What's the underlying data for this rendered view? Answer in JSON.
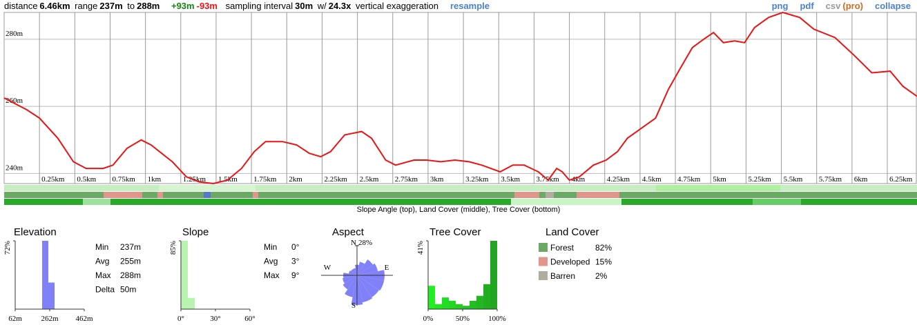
{
  "toolbar": {
    "left": [
      "distance",
      "6.46km",
      "range",
      "237m",
      "to",
      "288m",
      "+93m",
      "-93m",
      "sampling interval",
      "30m",
      "w/",
      "24.3x",
      "vertical exaggeration",
      "resample"
    ],
    "right": [
      "png",
      "pdf",
      "csv",
      "(pro)",
      "collapse"
    ]
  },
  "chart_data": [
    {
      "type": "line",
      "color": "#ee1111",
      "grid": true,
      "caption": "Slope Angle (top), Land Cover (middle), Tree Cover (bottom)",
      "x": [
        0,
        0.16,
        0.25,
        0.38,
        0.49,
        0.58,
        0.7,
        0.77,
        0.87,
        0.97,
        1.04,
        1.19,
        1.29,
        1.38,
        1.48,
        1.58,
        1.68,
        1.77,
        1.85,
        1.97,
        2.07,
        2.16,
        2.24,
        2.31,
        2.41,
        2.53,
        2.6,
        2.7,
        2.77,
        2.9,
        2.99,
        3.09,
        3.19,
        3.29,
        3.38,
        3.51,
        3.6,
        3.68,
        3.78,
        3.85,
        3.91,
        3.95,
        4.0,
        4.07,
        4.17,
        4.26,
        4.34,
        4.41,
        4.51,
        4.61,
        4.7,
        4.78,
        4.87,
        4.95,
        5.02,
        5.09,
        5.17,
        5.24,
        5.31,
        5.41,
        5.51,
        5.63,
        5.73,
        5.88,
        6.02,
        6.14,
        6.27,
        6.36,
        6.46
      ],
      "values": [
        262.5,
        259,
        256.5,
        250.5,
        243.5,
        241.5,
        241.5,
        242.5,
        247.5,
        250,
        248.5,
        243.5,
        239,
        237.5,
        237,
        238,
        241.5,
        246.5,
        249.5,
        249.5,
        248.5,
        246,
        245,
        246.5,
        251.5,
        252.5,
        250.5,
        244,
        242.5,
        244,
        244,
        243.5,
        244,
        243.5,
        242.5,
        240.5,
        242.5,
        242.5,
        240.5,
        238,
        241.5,
        240.5,
        238,
        239,
        242.5,
        244,
        246.5,
        250.5,
        253.5,
        256.5,
        265,
        271,
        277.5,
        280,
        282,
        279,
        279.5,
        279,
        283.5,
        286.5,
        288,
        286.5,
        283,
        280.5,
        275,
        270,
        270.5,
        266,
        263
      ],
      "xlim": [
        0,
        6.46
      ],
      "ylim": [
        237,
        288
      ],
      "xticks": [
        {
          "value": 0.25,
          "label": "0.25km"
        },
        {
          "value": 0.5,
          "label": "0.5km"
        },
        {
          "value": 0.75,
          "label": "0.75km"
        },
        {
          "value": 1,
          "label": "1km"
        },
        {
          "value": 1.25,
          "label": "1.25km"
        },
        {
          "value": 1.5,
          "label": "1.5km"
        },
        {
          "value": 1.75,
          "label": "1.75km"
        },
        {
          "value": 2,
          "label": "2km"
        },
        {
          "value": 2.25,
          "label": "2.25km"
        },
        {
          "value": 2.5,
          "label": "2.5km"
        },
        {
          "value": 2.75,
          "label": "2.75km"
        },
        {
          "value": 3,
          "label": "3km"
        },
        {
          "value": 3.25,
          "label": "3.25km"
        },
        {
          "value": 3.5,
          "label": "3.5km"
        },
        {
          "value": 3.75,
          "label": "3.75km"
        },
        {
          "value": 4,
          "label": "4km"
        },
        {
          "value": 4.25,
          "label": "4.25km"
        },
        {
          "value": 4.5,
          "label": "4.5km"
        },
        {
          "value": 4.75,
          "label": "4.75km"
        },
        {
          "value": 5,
          "label": "5km"
        },
        {
          "value": 5.25,
          "label": "5.25km"
        },
        {
          "value": 5.5,
          "label": "5.5km"
        },
        {
          "value": 5.75,
          "label": "5.75km"
        },
        {
          "value": 6,
          "label": "6km"
        },
        {
          "value": 6.25,
          "label": "6.25km"
        }
      ],
      "yticks": [
        {
          "value": 240,
          "label": "240m"
        },
        {
          "value": 260,
          "label": "260m"
        },
        {
          "value": 280,
          "label": "280m"
        }
      ]
    },
    {
      "type": "histogram",
      "title": "Elevation",
      "color": "#8080f8",
      "bins": [
        218,
        254,
        290
      ],
      "values": [
        72,
        28
      ],
      "xlim": [
        62,
        462
      ],
      "xticks": [
        {
          "value": 62,
          "label": "62m"
        },
        {
          "value": 262,
          "label": "262m"
        },
        {
          "value": 462,
          "label": "462m"
        }
      ],
      "ylim": [
        0,
        72
      ],
      "yticks": [
        {
          "value": 72,
          "label": "72%"
        }
      ],
      "stats": [
        {
          "label": "Min",
          "value": "237m"
        },
        {
          "label": "Avg",
          "value": "255m"
        },
        {
          "label": "Max",
          "value": "288m"
        },
        {
          "label": "Delta",
          "value": "50m"
        }
      ]
    },
    {
      "type": "histogram",
      "title": "Slope",
      "color": "#b8f4b0",
      "bins": [
        0,
        6,
        12
      ],
      "values": [
        85,
        14
      ],
      "xlim": [
        0,
        60
      ],
      "xticks": [
        {
          "value": 0,
          "label": "0°"
        },
        {
          "value": 30,
          "label": "30°"
        },
        {
          "value": 60,
          "label": "60°"
        }
      ],
      "ylim": [
        0,
        85
      ],
      "yticks": [
        {
          "value": 85,
          "label": "85%"
        }
      ],
      "stats": [
        {
          "label": "Min",
          "value": "0°"
        },
        {
          "label": "Avg",
          "value": "3°"
        },
        {
          "label": "Max",
          "value": "9°"
        }
      ]
    },
    {
      "type": "polar",
      "title": "Aspect",
      "color": "#8080f8",
      "direction_labels": [
        "N",
        "E",
        "S",
        "W"
      ],
      "values": [
        10,
        13,
        18,
        20,
        26,
        26,
        25,
        26,
        28,
        21,
        16,
        14,
        13,
        8,
        7,
        7
      ],
      "rlim": [
        0,
        28
      ],
      "rticks": [
        {
          "value": 28,
          "label": "28%"
        }
      ]
    },
    {
      "type": "histogram",
      "title": "Tree Cover",
      "colors": [
        "#22ee22",
        "#22e622",
        "#22de22",
        "#22d622",
        "#22ce22",
        "#22c622",
        "#22be22",
        "#22b622",
        "#22ae22",
        "#22a622"
      ],
      "bins": [
        0,
        10,
        20,
        30,
        40,
        50,
        60,
        70,
        80,
        90,
        100
      ],
      "values": [
        14,
        3,
        7,
        5,
        3,
        2,
        5,
        8,
        15,
        41
      ],
      "xlim": [
        0,
        100
      ],
      "xticks": [
        {
          "value": 0,
          "label": "0%"
        },
        {
          "value": 50,
          "label": "50%"
        },
        {
          "value": 100,
          "label": "100%"
        }
      ],
      "ylim": [
        0,
        41
      ],
      "yticks": [
        {
          "value": 41,
          "label": "41%"
        }
      ]
    },
    {
      "type": "legend-list",
      "title": "Land Cover",
      "categories": [
        "Forest",
        "Developed",
        "Barren"
      ],
      "values": [
        82,
        15,
        2
      ],
      "value_labels": [
        "82%",
        "15%",
        "2%"
      ],
      "colors": [
        "#6aaa64",
        "#e0968a",
        "#b0aca0"
      ]
    }
  ]
}
